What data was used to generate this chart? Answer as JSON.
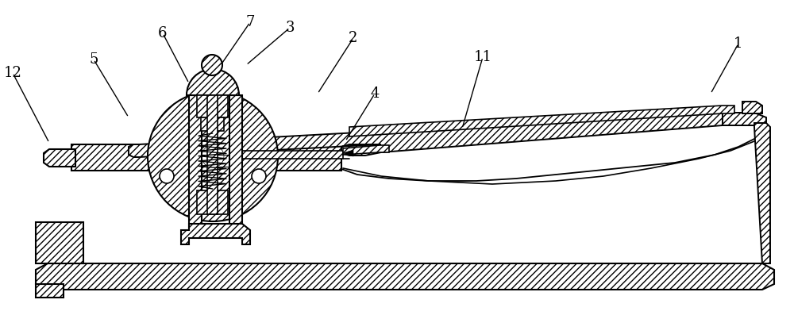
{
  "bg_color": "#ffffff",
  "line_color": "#000000",
  "fig_width": 10.0,
  "fig_height": 3.97,
  "label_data": [
    [
      "1",
      930,
      55,
      895,
      118
    ],
    [
      "2",
      445,
      48,
      400,
      118
    ],
    [
      "3",
      365,
      35,
      310,
      82
    ],
    [
      "4",
      472,
      118,
      435,
      178
    ],
    [
      "5",
      118,
      75,
      162,
      148
    ],
    [
      "6",
      205,
      42,
      238,
      105
    ],
    [
      "7",
      315,
      28,
      278,
      82
    ],
    [
      "11",
      608,
      72,
      582,
      162
    ],
    [
      "12",
      16,
      92,
      62,
      180
    ]
  ]
}
